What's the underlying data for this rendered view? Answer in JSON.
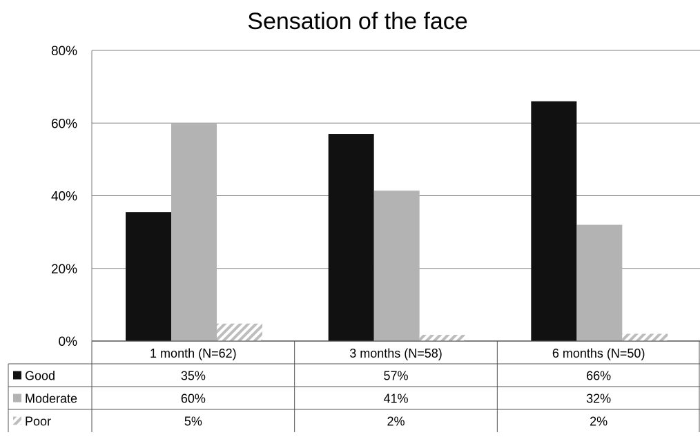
{
  "chart_data": {
    "type": "bar",
    "title": "Sensation of the face",
    "xlabel": "",
    "ylabel": "",
    "categories": [
      "1 month (N=62)",
      "3 months (N=58)",
      "6 months (N=50)"
    ],
    "ylim": [
      0,
      80
    ],
    "yticks": [
      0,
      20,
      40,
      60,
      80
    ],
    "ytick_labels": [
      "0%",
      "20%",
      "40%",
      "60%",
      "80%"
    ],
    "grid": true,
    "legend": "data-table",
    "series": [
      {
        "name": "Good",
        "values": [
          35.5,
          57,
          66
        ],
        "labels": [
          "35%",
          "57%",
          "66%"
        ],
        "color": "#111111",
        "pattern": "solid"
      },
      {
        "name": "Moderate",
        "values": [
          59.8,
          41.4,
          32
        ],
        "labels": [
          "60%",
          "41%",
          "32%"
        ],
        "color": "#b3b3b3",
        "pattern": "solid"
      },
      {
        "name": "Poor",
        "values": [
          4.8,
          1.7,
          2
        ],
        "labels": [
          "5%",
          "2%",
          "2%"
        ],
        "color": "#cccccc",
        "pattern": "diagonal-hatch"
      }
    ]
  }
}
